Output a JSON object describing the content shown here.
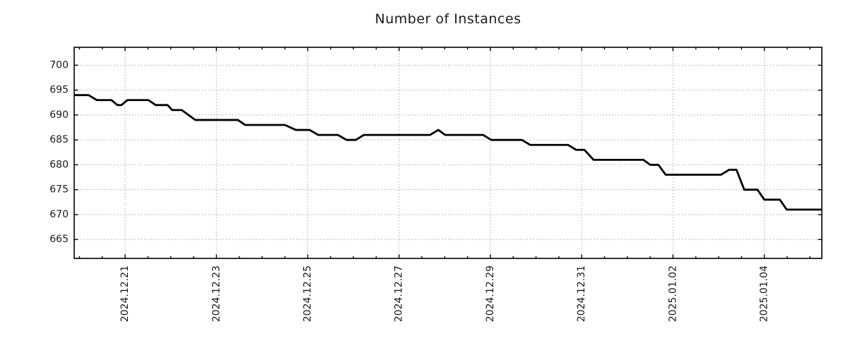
{
  "figure": {
    "title": "Number of Instances",
    "background": "#ffffff"
  },
  "style": {
    "line_color": "#000000",
    "grid_color": "#a6a6a6",
    "spine_color": "#000000",
    "tick_color": "#000000",
    "text_color": "#1a1a1a"
  },
  "chart_data": {
    "type": "line",
    "title": "Number of Instances",
    "xlabel": "",
    "ylabel": "",
    "legend": "none",
    "grid": "dotted gray, major ticks only, ticks inward on all four spines",
    "x_unit": "days since 2024-12-21 00:00",
    "xlim": [
      -1.115,
      15.26
    ],
    "ylim": [
      661.2,
      703.6
    ],
    "y_ticks": [
      665,
      670,
      675,
      680,
      685,
      690,
      695,
      700
    ],
    "x_major_ticks": [
      0,
      2,
      4,
      6,
      8,
      10,
      12,
      14
    ],
    "x_major_labels": [
      "2024.12.21",
      "2024.12.23",
      "2024.12.25",
      "2024.12.27",
      "2024.12.29",
      "2024.12.31",
      "2025.01.02",
      "2025.01.04"
    ],
    "x_minor_tick_step": 0.5,
    "x_label_rotation_deg": -90,
    "series": [
      {
        "name": "Number of Instances",
        "color": "#000000",
        "points": [
          [
            -1.115,
            694
          ],
          [
            -0.8,
            694
          ],
          [
            -0.62,
            693
          ],
          [
            -0.3,
            693
          ],
          [
            -0.17,
            692
          ],
          [
            -0.08,
            692
          ],
          [
            0.05,
            693
          ],
          [
            0.51,
            693
          ],
          [
            0.67,
            692
          ],
          [
            0.93,
            692
          ],
          [
            1.03,
            691
          ],
          [
            1.24,
            691
          ],
          [
            1.54,
            689
          ],
          [
            2.47,
            689
          ],
          [
            2.63,
            688
          ],
          [
            3.5,
            688
          ],
          [
            3.74,
            687
          ],
          [
            4.04,
            687
          ],
          [
            4.23,
            686
          ],
          [
            4.66,
            686
          ],
          [
            4.85,
            685
          ],
          [
            5.05,
            685
          ],
          [
            5.23,
            686
          ],
          [
            6.68,
            686
          ],
          [
            6.86,
            687
          ],
          [
            7.01,
            686
          ],
          [
            7.84,
            686
          ],
          [
            8.02,
            685
          ],
          [
            8.69,
            685
          ],
          [
            8.87,
            684
          ],
          [
            9.7,
            684
          ],
          [
            9.88,
            683
          ],
          [
            10.06,
            683
          ],
          [
            10.26,
            681
          ],
          [
            11.35,
            681
          ],
          [
            11.5,
            680
          ],
          [
            11.68,
            680
          ],
          [
            11.84,
            678
          ],
          [
            13.05,
            678
          ],
          [
            13.23,
            679
          ],
          [
            13.39,
            679
          ],
          [
            13.56,
            675
          ],
          [
            13.85,
            675
          ],
          [
            14.0,
            673
          ],
          [
            14.34,
            673
          ],
          [
            14.49,
            671
          ],
          [
            15.26,
            671
          ]
        ]
      }
    ]
  }
}
